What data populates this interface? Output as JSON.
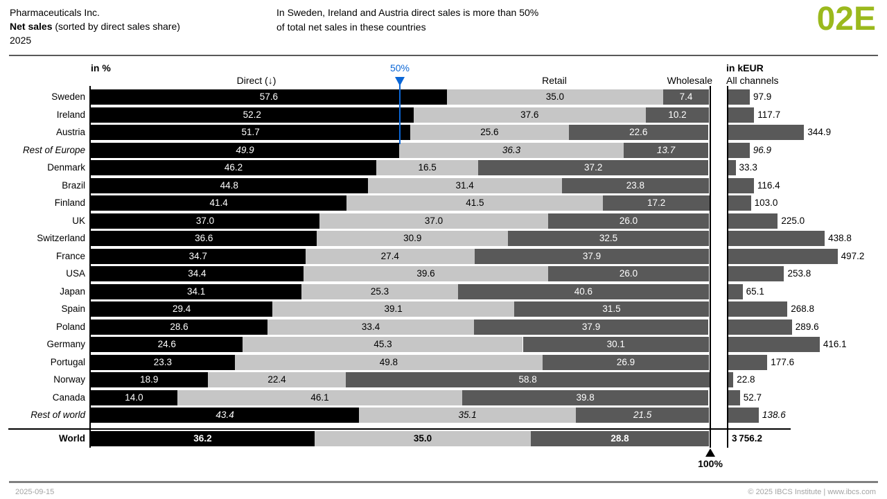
{
  "header": {
    "company": "Pharmaceuticals Inc.",
    "title_bold": "Net sales",
    "title_rest": " (sorted by direct sales share)",
    "period": "2025",
    "message_line1": "In Sweden, Ireland and Austria direct sales is more than 50%",
    "message_line2": "of total net sales in these countries",
    "page_code": "02E"
  },
  "chart": {
    "unit_left": "in %",
    "unit_right": "in kEUR",
    "col_direct": "Direct (↓)",
    "col_retail": "Retail",
    "col_wholesale": "Wholesale",
    "col_all_channels": "All channels",
    "marker_50": "50%",
    "marker_100": "100%"
  },
  "chart_data": {
    "type": "bar",
    "subtype": "horizontal-stacked-100pct-with-side-bar-panel",
    "series_names": [
      "Direct",
      "Retail",
      "Wholesale"
    ],
    "value_unit": "%",
    "side_panel_unit": "kEUR",
    "axis": {
      "pct_min": 0,
      "pct_max": 100,
      "threshold_pct": 50
    },
    "colors": {
      "direct": "#000000",
      "retail": "#c6c6c6",
      "wholesale": "#595959",
      "threshold_blue": "#0a66d6",
      "page_code_green": "#9bb91d"
    },
    "rows": [
      {
        "label": "Sweden",
        "direct": 57.6,
        "retail": 35.0,
        "wholesale": 7.4,
        "all_channels": 97.9,
        "style": "normal"
      },
      {
        "label": "Ireland",
        "direct": 52.2,
        "retail": 37.6,
        "wholesale": 10.2,
        "all_channels": 117.7,
        "style": "normal"
      },
      {
        "label": "Austria",
        "direct": 51.7,
        "retail": 25.6,
        "wholesale": 22.6,
        "all_channels": 344.9,
        "style": "normal"
      },
      {
        "label": "Rest of Europe",
        "direct": 49.9,
        "retail": 36.3,
        "wholesale": 13.7,
        "all_channels": 96.9,
        "style": "italic"
      },
      {
        "label": "Denmark",
        "direct": 46.2,
        "retail": 16.5,
        "wholesale": 37.2,
        "all_channels": 33.3,
        "style": "normal"
      },
      {
        "label": "Brazil",
        "direct": 44.8,
        "retail": 31.4,
        "wholesale": 23.8,
        "all_channels": 116.4,
        "style": "normal"
      },
      {
        "label": "Finland",
        "direct": 41.4,
        "retail": 41.5,
        "wholesale": 17.2,
        "all_channels": 103.0,
        "style": "normal"
      },
      {
        "label": "UK",
        "direct": 37.0,
        "retail": 37.0,
        "wholesale": 26.0,
        "all_channels": 225.0,
        "style": "normal"
      },
      {
        "label": "Switzerland",
        "direct": 36.6,
        "retail": 30.9,
        "wholesale": 32.5,
        "all_channels": 438.8,
        "style": "normal"
      },
      {
        "label": "France",
        "direct": 34.7,
        "retail": 27.4,
        "wholesale": 37.9,
        "all_channels": 497.2,
        "style": "normal"
      },
      {
        "label": "USA",
        "direct": 34.4,
        "retail": 39.6,
        "wholesale": 26.0,
        "all_channels": 253.8,
        "style": "normal"
      },
      {
        "label": "Japan",
        "direct": 34.1,
        "retail": 25.3,
        "wholesale": 40.6,
        "all_channels": 65.1,
        "style": "normal"
      },
      {
        "label": "Spain",
        "direct": 29.4,
        "retail": 39.1,
        "wholesale": 31.5,
        "all_channels": 268.8,
        "style": "normal"
      },
      {
        "label": "Poland",
        "direct": 28.6,
        "retail": 33.4,
        "wholesale": 37.9,
        "all_channels": 289.6,
        "style": "normal"
      },
      {
        "label": "Germany",
        "direct": 24.6,
        "retail": 45.3,
        "wholesale": 30.1,
        "all_channels": 416.1,
        "style": "normal"
      },
      {
        "label": "Portugal",
        "direct": 23.3,
        "retail": 49.8,
        "wholesale": 26.9,
        "all_channels": 177.6,
        "style": "normal"
      },
      {
        "label": "Norway",
        "direct": 18.9,
        "retail": 22.4,
        "wholesale": 58.8,
        "all_channels": 22.8,
        "style": "normal"
      },
      {
        "label": "Canada",
        "direct": 14.0,
        "retail": 46.1,
        "wholesale": 39.8,
        "all_channels": 52.7,
        "style": "normal"
      },
      {
        "label": "Rest of world",
        "direct": 43.4,
        "retail": 35.1,
        "wholesale": 21.5,
        "all_channels": 138.6,
        "style": "italic"
      },
      {
        "label": "World",
        "direct": 36.2,
        "retail": 35.0,
        "wholesale": 28.8,
        "all_channels": 3756.2,
        "all_channels_display": "3 756.2",
        "style": "bold",
        "no_side_bar": true
      }
    ]
  },
  "footer": {
    "date": "2025-09-15",
    "copyright": "© 2025 IBCS Institute | www.ibcs.com"
  }
}
